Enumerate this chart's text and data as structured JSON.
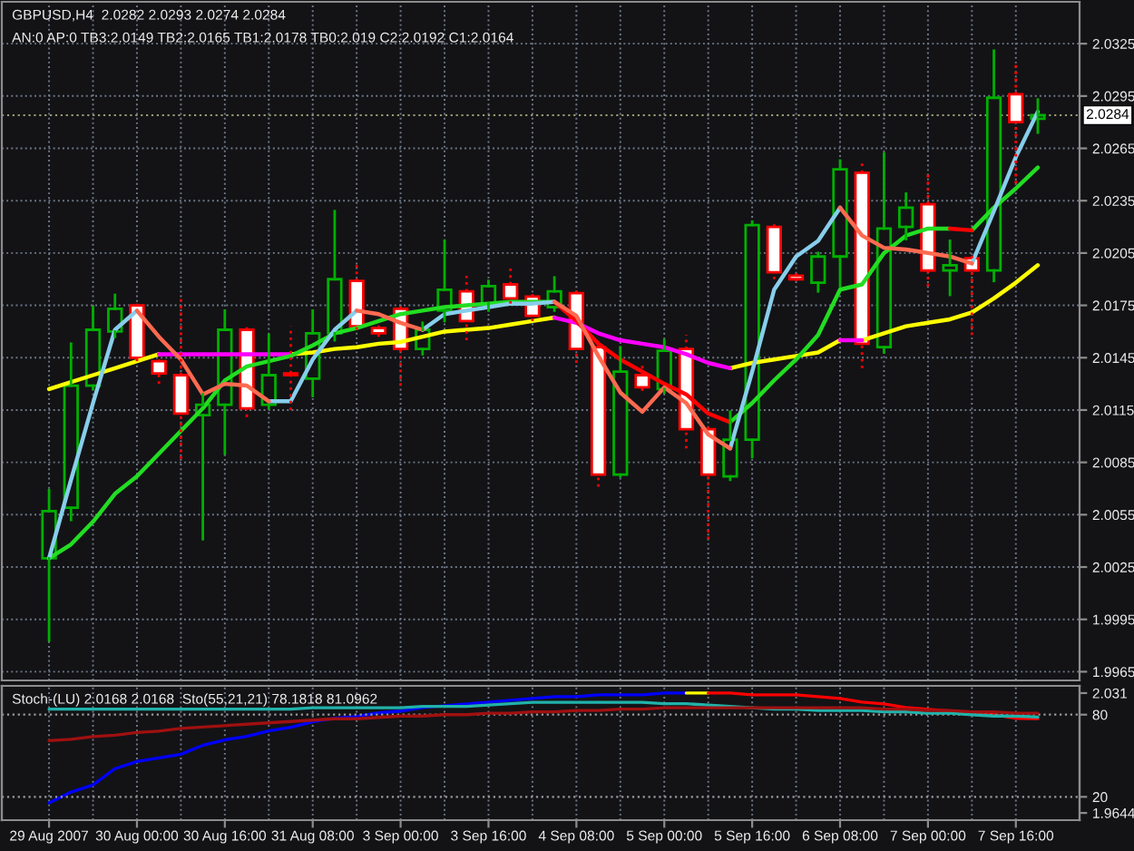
{
  "chart_data": [
    {
      "type": "candlestick",
      "title": "GBPUSD,H4  2.0282 2.0293 2.0274 2.0284",
      "subtitle": "AN:0 AP:0 TB3:2.0149 TB2:2.0165 TB1:2.0178 TB0:2.019 C2:2.0192 C1:2.0164",
      "categories": [
        null,
        null,
        null,
        null,
        null,
        null,
        null,
        null,
        null,
        null,
        null,
        null,
        null,
        null,
        null,
        null,
        null,
        null,
        null,
        null,
        null,
        null,
        null,
        null,
        null,
        null,
        null,
        null,
        null,
        null,
        null,
        null,
        null,
        null,
        null,
        null,
        null,
        null,
        null,
        null,
        null,
        null,
        null,
        null,
        null,
        null
      ],
      "ohlc": [
        [
          2.003,
          2.0069,
          1.9983,
          2.0057
        ],
        [
          2.0059,
          2.0153,
          2.0052,
          2.0129
        ],
        [
          2.0129,
          2.0174,
          2.0127,
          2.0161
        ],
        [
          2.016,
          2.0181,
          2.0157,
          2.0173
        ],
        [
          2.0175,
          2.0176,
          2.0143,
          2.0145
        ],
        [
          2.0143,
          2.0144,
          2.013,
          2.0136
        ],
        [
          2.0135,
          2.0181,
          2.0087,
          2.0113
        ],
        [
          2.0112,
          2.0124,
          2.0041,
          2.0118
        ],
        [
          2.0118,
          2.0172,
          2.009,
          2.0161
        ],
        [
          2.0161,
          2.0163,
          2.0111,
          2.0116
        ],
        [
          2.0118,
          2.0158,
          2.0116,
          2.0135
        ],
        [
          2.0136,
          2.0163,
          2.0115,
          2.0135
        ],
        [
          2.0133,
          2.0172,
          2.0123,
          2.0159
        ],
        [
          2.0159,
          2.0229,
          2.0155,
          2.019
        ],
        [
          2.0189,
          2.0198,
          2.0161,
          2.0163
        ],
        [
          2.0162,
          2.0164,
          2.0157,
          2.0159
        ],
        [
          2.0173,
          2.0176,
          2.0129,
          2.015
        ],
        [
          2.015,
          2.0165,
          2.0147,
          2.0161
        ],
        [
          2.0172,
          2.0212,
          2.0166,
          2.0184
        ],
        [
          2.0183,
          2.0192,
          2.0155,
          2.0166
        ],
        [
          2.0176,
          2.0189,
          2.0172,
          2.0186
        ],
        [
          2.0187,
          2.0198,
          2.0176,
          2.0179
        ],
        [
          2.018,
          2.0183,
          2.0166,
          2.0169
        ],
        [
          2.0174,
          2.0191,
          2.0172,
          2.0183
        ],
        [
          2.0182,
          2.0184,
          2.0142,
          2.015
        ],
        [
          2.0151,
          2.0155,
          2.0071,
          2.0078
        ],
        [
          2.0078,
          2.0151,
          2.0077,
          2.0137
        ],
        [
          2.0135,
          2.0142,
          2.0126,
          2.0128
        ],
        [
          2.0127,
          2.0155,
          2.0125,
          2.0149
        ],
        [
          2.015,
          2.0158,
          2.0093,
          2.0104
        ],
        [
          2.0104,
          2.0106,
          2.0041,
          2.0078
        ],
        [
          2.0077,
          2.0114,
          2.0075,
          2.0098
        ],
        [
          2.0098,
          2.0223,
          2.0088,
          2.0221
        ],
        [
          2.022,
          2.0222,
          2.019,
          2.0194
        ],
        [
          2.0192,
          2.0194,
          2.0189,
          2.019
        ],
        [
          2.0188,
          2.0205,
          2.0183,
          2.0203
        ],
        [
          2.0203,
          2.0258,
          2.0186,
          2.0253
        ],
        [
          2.0251,
          2.0258,
          2.0139,
          2.0153
        ],
        [
          2.0151,
          2.0262,
          2.0148,
          2.0219
        ],
        [
          2.022,
          2.0239,
          2.0213,
          2.0231
        ],
        [
          2.0233,
          2.025,
          2.0186,
          2.0195
        ],
        [
          2.0195,
          2.0212,
          2.0181,
          2.0198
        ],
        [
          2.0202,
          2.0204,
          2.0158,
          2.0195
        ],
        [
          2.0195,
          2.0321,
          2.0189,
          2.0294
        ],
        [
          2.0296,
          2.0314,
          2.0245,
          2.028
        ],
        [
          2.0282,
          2.0293,
          2.0274,
          2.0284
        ]
      ],
      "colors": [
        "#00b000",
        "#00b000",
        "#00b000",
        "#00b000",
        "#ff0000",
        "#ff0000",
        "#ff0000",
        "#00b000",
        "#00b000",
        "#ff0000",
        "#00b000",
        "#ff0000",
        "#00b000",
        "#00b000",
        "#ff0000",
        "#ff0000",
        "#ff0000",
        "#00b000",
        "#00b000",
        "#ff0000",
        "#00b000",
        "#ff0000",
        "#ff0000",
        "#00b000",
        "#ff0000",
        "#ff0000",
        "#00b000",
        "#ff0000",
        "#00b000",
        "#ff0000",
        "#ff0000",
        "#00b000",
        "#00b000",
        "#ff0000",
        "#ff0000",
        "#00b000",
        "#00b000",
        "#ff0000",
        "#00b000",
        "#00b000",
        "#ff0000",
        "#00b000",
        "#ff0000",
        "#00b000",
        "#ff0000",
        "#00b000"
      ],
      "series": [
        {
          "type": "line",
          "color": "#ffff00",
          "values": [
            2.0127,
            2.0131,
            2.0135,
            2.0139,
            2.0143,
            2.0147,
            null,
            null,
            null,
            null,
            null,
            2.0147,
            2.0148,
            2.015,
            2.0151,
            2.0153,
            2.0154,
            2.0157,
            2.016,
            2.0161,
            2.0162,
            2.0164,
            2.0166,
            2.0168,
            null,
            null,
            null,
            null,
            null,
            null,
            null,
            2.0139,
            2.0142,
            2.0144,
            2.0146,
            2.0148,
            2.0155,
            null,
            null,
            null,
            null,
            null,
            null,
            null,
            null,
            null
          ]
        },
        {
          "type": "line",
          "color": "#ffff00",
          "values": [
            null,
            null,
            null,
            null,
            null,
            null,
            null,
            null,
            null,
            null,
            null,
            null,
            null,
            null,
            null,
            null,
            null,
            null,
            null,
            null,
            null,
            null,
            null,
            null,
            null,
            null,
            null,
            null,
            null,
            null,
            null,
            null,
            null,
            null,
            null,
            null,
            null,
            2.0155,
            2.0159,
            2.0163,
            2.0165,
            2.0167,
            2.0171,
            2.0179,
            2.0188,
            2.0198
          ]
        },
        {
          "type": "line",
          "color": "#ff00ff",
          "values": [
            null,
            null,
            null,
            null,
            null,
            2.0147,
            2.0147,
            2.0147,
            2.0147,
            2.0147,
            2.0147,
            2.0147,
            null,
            null,
            null,
            null,
            null,
            null,
            null,
            null,
            null,
            null,
            null,
            2.0168,
            2.0165,
            2.0159,
            2.0155,
            2.0153,
            2.0151,
            2.0147,
            2.0142,
            2.0139,
            null,
            null,
            null,
            null,
            2.0155,
            2.0155,
            null,
            null,
            null,
            null,
            null,
            null,
            null,
            null
          ]
        },
        {
          "type": "line",
          "color": "#22dd22",
          "values": [
            2.003,
            2.0038,
            2.0051,
            2.0067,
            2.0077,
            2.009,
            2.0103,
            2.0116,
            2.0132,
            2.014,
            2.0143,
            2.0146,
            2.0152,
            2.0159,
            2.0162,
            2.0166,
            2.017,
            2.0172,
            2.0174,
            2.0175,
            2.0176,
            2.0177,
            2.0177,
            2.0177,
            null,
            null,
            null,
            null,
            null,
            null,
            null,
            2.0108,
            2.0119,
            2.0132,
            2.0144,
            2.0158,
            2.0184,
            2.0187,
            2.0205,
            2.0215,
            2.0219,
            2.0219,
            null,
            null,
            null,
            null
          ]
        },
        {
          "type": "line",
          "color": "#22dd22",
          "values": [
            null,
            null,
            null,
            null,
            null,
            null,
            null,
            null,
            null,
            null,
            null,
            null,
            null,
            null,
            null,
            null,
            null,
            null,
            null,
            null,
            null,
            null,
            null,
            null,
            null,
            null,
            null,
            null,
            null,
            null,
            null,
            null,
            null,
            null,
            null,
            null,
            null,
            null,
            null,
            null,
            null,
            null,
            2.0218,
            2.0231,
            2.0242,
            2.0254
          ]
        },
        {
          "type": "line",
          "color": "#ff0000",
          "values": [
            null,
            null,
            null,
            null,
            null,
            null,
            null,
            null,
            null,
            null,
            null,
            null,
            null,
            null,
            null,
            null,
            null,
            null,
            null,
            null,
            null,
            null,
            null,
            2.0177,
            2.0166,
            2.0153,
            2.0144,
            2.0137,
            2.013,
            2.0124,
            2.0113,
            2.0108,
            null,
            null,
            null,
            null,
            null,
            null,
            null,
            null,
            null,
            2.0219,
            2.0218,
            null,
            null,
            null
          ]
        },
        {
          "type": "line",
          "color": "#87ceeb",
          "values": [
            2.003,
            2.0075,
            2.0119,
            2.0161,
            2.0172,
            null,
            null,
            null,
            null,
            null,
            2.012,
            2.012,
            2.0144,
            2.0161,
            2.0172,
            null,
            null,
            2.0161,
            2.017,
            2.0172,
            2.0174,
            2.0176,
            2.0176,
            2.0177,
            null,
            null,
            null,
            null,
            null,
            null,
            null,
            2.0093,
            2.0137,
            2.0184,
            2.0203,
            2.0212,
            2.0231,
            null,
            null,
            null,
            null,
            null,
            2.0199,
            2.0229,
            2.026,
            2.0286
          ]
        },
        {
          "type": "line",
          "color": "#ff6a50",
          "values": [
            null,
            null,
            null,
            null,
            2.0172,
            2.0157,
            2.0144,
            2.0124,
            2.013,
            2.0129,
            2.012,
            null,
            null,
            null,
            2.0172,
            2.017,
            2.0165,
            2.0161,
            null,
            null,
            null,
            null,
            null,
            2.0177,
            2.0169,
            2.0146,
            2.0125,
            2.0114,
            2.0128,
            2.0119,
            2.0101,
            2.0093,
            null,
            null,
            null,
            null,
            2.0231,
            2.0215,
            2.0208,
            2.0207,
            2.0205,
            2.0203,
            2.0199,
            null,
            null,
            null
          ]
        }
      ],
      "ylim": [
        1.996,
        2.0349
      ],
      "yticks": [
        2.0325,
        2.0295,
        2.0265,
        2.0235,
        2.0205,
        2.0175,
        2.0145,
        2.0115,
        2.0085,
        2.0055,
        2.0025,
        1.9995,
        1.9965
      ],
      "grid": true,
      "tick_labels": "y",
      "ref_lines": [
        {
          "axis": "y",
          "value": 2.0284,
          "label": "2.0284",
          "color": "#9a9a72",
          "line_style": "dotted"
        }
      ]
    },
    {
      "type": "line",
      "title": "Stoch-(LU) 2.0168 2.0168  Sto(55,21,21) 78.1818 81.0962",
      "categories": [
        "29 Aug 2007",
        null,
        null,
        null,
        "30 Aug 00:00",
        null,
        null,
        null,
        "30 Aug 16:00",
        null,
        null,
        null,
        "31 Aug 08:00",
        null,
        null,
        null,
        "3 Sep 00:00",
        null,
        null,
        null,
        "3 Sep 16:00",
        null,
        null,
        null,
        "4 Sep 08:00",
        null,
        null,
        null,
        "5 Sep 00:00",
        null,
        null,
        null,
        "5 Sep 16:00",
        null,
        null,
        null,
        "6 Sep 08:00",
        null,
        null,
        null,
        "7 Sep 00:00",
        null,
        null,
        null,
        "7 Sep 16:00",
        null
      ],
      "series": [
        {
          "color": "#0000ff",
          "values": [
            1.97,
            1.976,
            1.98,
            1.989,
            1.993,
            1.995,
            1.997,
            2.002,
            2.005,
            2.007,
            2.01,
            2.012,
            2.015,
            2.017,
            2.018,
            2.02,
            2.021,
            2.023,
            2.024,
            2.025,
            2.026,
            2.027,
            2.028,
            2.029,
            2.029,
            2.03,
            2.03,
            2.03,
            2.031,
            2.031,
            null,
            null,
            null,
            null,
            null,
            null,
            null,
            null,
            null,
            null,
            null,
            null,
            null,
            null,
            null,
            null
          ]
        },
        {
          "color": "#ffff00",
          "values": [
            null,
            null,
            null,
            null,
            null,
            null,
            null,
            null,
            null,
            null,
            null,
            null,
            null,
            null,
            null,
            null,
            null,
            null,
            null,
            null,
            null,
            null,
            null,
            null,
            null,
            null,
            null,
            null,
            null,
            2.031,
            2.031,
            null,
            null,
            null,
            null,
            null,
            null,
            null,
            null,
            null,
            null,
            null,
            null,
            null,
            null,
            null
          ]
        },
        {
          "color": "#ff0000",
          "values": [
            null,
            null,
            null,
            null,
            null,
            null,
            null,
            null,
            null,
            null,
            null,
            null,
            null,
            null,
            null,
            null,
            null,
            null,
            null,
            null,
            null,
            null,
            null,
            null,
            null,
            null,
            null,
            null,
            null,
            null,
            2.031,
            2.031,
            2.03,
            2.03,
            2.03,
            2.029,
            2.028,
            2.026,
            2.025,
            2.023,
            2.022,
            2.021,
            2.02,
            2.019,
            2.017,
            2.0168
          ]
        },
        {
          "color": "#20b2aa",
          "axis": "y2",
          "values": [
            84,
            84,
            84,
            84,
            84,
            84,
            84,
            84,
            84,
            84,
            84,
            84,
            85,
            85,
            85,
            85,
            85,
            86,
            86,
            86,
            87,
            88,
            89,
            89,
            89,
            89,
            89,
            89,
            88,
            88,
            87,
            86,
            85,
            84,
            84,
            83,
            83,
            83,
            82,
            82,
            81,
            81,
            80,
            79,
            79,
            78.1818
          ]
        },
        {
          "color": "#a01010",
          "axis": "y2",
          "values": [
            61,
            62,
            64,
            65,
            67,
            68,
            70,
            71,
            72,
            73,
            74,
            75,
            76,
            77,
            77,
            78,
            79,
            79,
            80,
            80,
            81,
            81,
            82,
            82,
            83,
            83,
            84,
            84,
            85,
            85,
            85,
            85,
            85,
            85,
            85,
            85,
            85,
            85,
            84,
            84,
            83,
            83,
            82,
            82,
            81,
            81.0962
          ]
        }
      ],
      "ylim": [
        1.9604,
        2.035
      ],
      "yticks": [
        2.031,
        1.9644
      ],
      "y2lim": [
        3,
        101
      ],
      "y2ticks": [
        80,
        20
      ],
      "grid": "x",
      "ref_lines": [
        {
          "axis": "y2",
          "value": 80,
          "color": "#9a9a9a",
          "line_style": "dotted"
        },
        {
          "axis": "y2",
          "value": 20,
          "color": "#9a9a9a",
          "line_style": "dotted"
        }
      ]
    }
  ]
}
